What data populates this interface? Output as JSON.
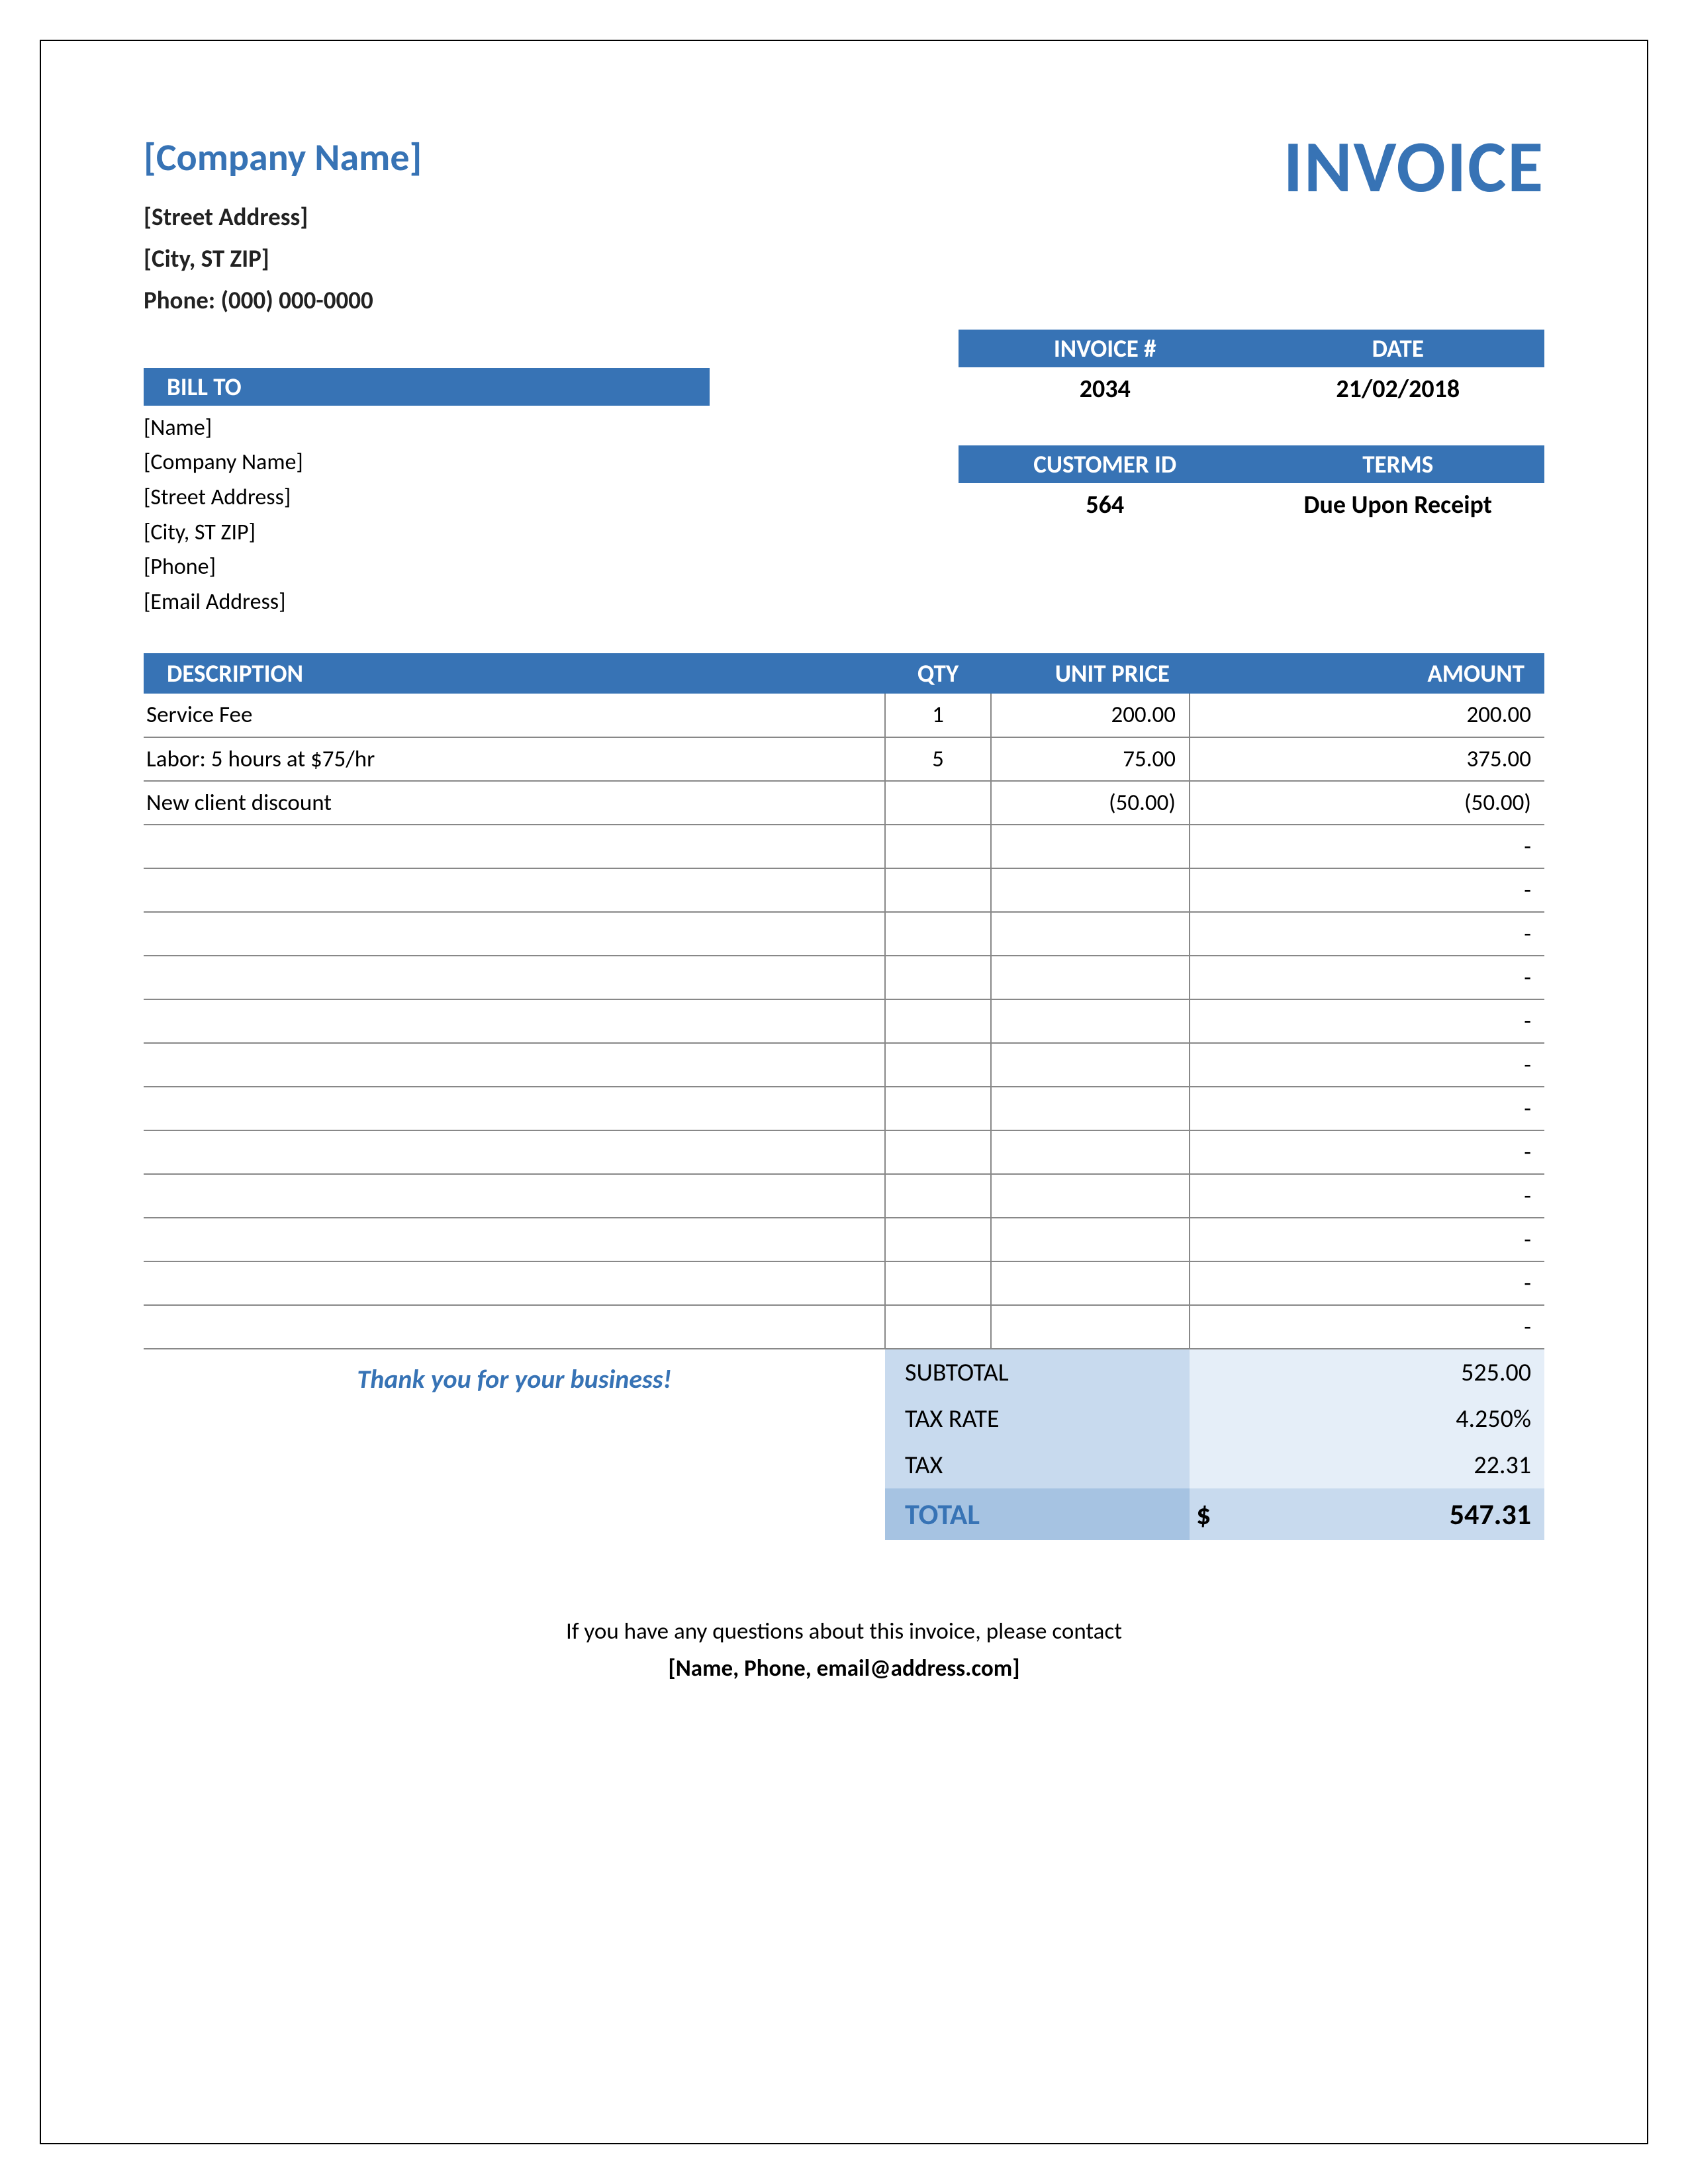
{
  "header": {
    "company_name": "[Company Name]",
    "invoice_title": "INVOICE",
    "street": "[Street Address]",
    "city": "[City, ST  ZIP]",
    "phone_label": "Phone: (000) 000-0000"
  },
  "meta1": {
    "invoice_num_label": "INVOICE #",
    "date_label": "DATE",
    "invoice_num": "2034",
    "date": "21/02/2018"
  },
  "meta2": {
    "cust_label": "CUSTOMER ID",
    "terms_label": "TERMS",
    "cust_id": "564",
    "terms": "Due Upon Receipt"
  },
  "billto": {
    "header": "BILL TO",
    "lines": [
      "[Name]",
      "[Company Name]",
      "[Street Address]",
      "[City, ST  ZIP]",
      "[Phone]",
      "[Email Address]"
    ]
  },
  "columns": {
    "desc": "DESCRIPTION",
    "qty": "QTY",
    "price": "UNIT PRICE",
    "amount": "AMOUNT"
  },
  "items": [
    {
      "desc": "Service Fee",
      "qty": "1",
      "price": "200.00",
      "amount": "200.00"
    },
    {
      "desc": "Labor: 5 hours at $75/hr",
      "qty": "5",
      "price": "75.00",
      "amount": "375.00"
    },
    {
      "desc": "New client discount",
      "qty": "",
      "price": "(50.00)",
      "amount": "(50.00)"
    },
    {
      "desc": "",
      "qty": "",
      "price": "",
      "amount": "-"
    },
    {
      "desc": "",
      "qty": "",
      "price": "",
      "amount": "-"
    },
    {
      "desc": "",
      "qty": "",
      "price": "",
      "amount": "-"
    },
    {
      "desc": "",
      "qty": "",
      "price": "",
      "amount": "-"
    },
    {
      "desc": "",
      "qty": "",
      "price": "",
      "amount": "-"
    },
    {
      "desc": "",
      "qty": "",
      "price": "",
      "amount": "-"
    },
    {
      "desc": "",
      "qty": "",
      "price": "",
      "amount": "-"
    },
    {
      "desc": "",
      "qty": "",
      "price": "",
      "amount": "-"
    },
    {
      "desc": "",
      "qty": "",
      "price": "",
      "amount": "-"
    },
    {
      "desc": "",
      "qty": "",
      "price": "",
      "amount": "-"
    },
    {
      "desc": "",
      "qty": "",
      "price": "",
      "amount": "-"
    },
    {
      "desc": "",
      "qty": "",
      "price": "",
      "amount": "-"
    }
  ],
  "summary": {
    "thankyou": "Thank you for your business!",
    "subtotal_label": "SUBTOTAL",
    "subtotal": "525.00",
    "taxrate_label": "TAX RATE",
    "taxrate": "4.250%",
    "tax_label": "TAX",
    "tax": "22.31",
    "total_label": "TOTAL",
    "currency": "$",
    "total": "547.31"
  },
  "footer": {
    "line1": "If you have any questions about this invoice, please contact",
    "line2": "[Name, Phone, email@address.com]"
  },
  "colors": {
    "accent": "#3773b5",
    "sum_label_bg": "#c8daee",
    "sum_label_dark": "#a6c3e2",
    "sum_val_bg": "#e5eef8",
    "sum_val_dark": "#c8daee"
  }
}
